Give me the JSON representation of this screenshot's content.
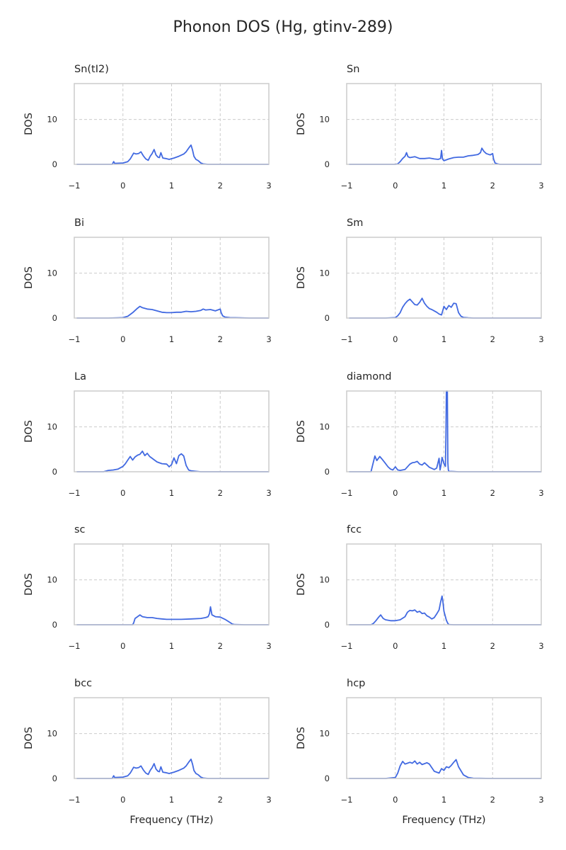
{
  "figure_title": "Phonon DOS (Hg, gtinv-289)",
  "colors": {
    "line": "#4169e1",
    "spine": "#cccccc",
    "grid": "#cccccc",
    "text": "#262626"
  },
  "chart_data": [
    {
      "type": "line",
      "title": "Sn(tI2)",
      "ylabel": "DOS",
      "xlabel": "",
      "xlim": [
        -1,
        3
      ],
      "ylim": [
        0,
        18
      ],
      "xticks": [
        "−1",
        "0",
        "1",
        "2",
        "3"
      ],
      "yticks": [
        "0",
        "10"
      ],
      "grid": true,
      "grid_style": "dashed",
      "x": [
        -0.95,
        -0.22,
        -0.19,
        -0.17,
        0,
        0.1,
        0.15,
        0.22,
        0.27,
        0.32,
        0.37,
        0.42,
        0.47,
        0.52,
        0.56,
        0.6,
        0.64,
        0.68,
        0.72,
        0.75,
        0.78,
        0.82,
        0.88,
        0.95,
        1.05,
        1.15,
        1.25,
        1.3,
        1.35,
        1.4,
        1.43,
        1.46,
        1.5,
        1.55,
        1.6,
        1.65,
        1.75,
        2.0,
        2.5,
        3.0
      ],
      "y": [
        0,
        0,
        0.6,
        0.2,
        0.3,
        0.6,
        1.2,
        2.5,
        2.3,
        2.4,
        2.8,
        1.9,
        1.2,
        0.9,
        1.8,
        2.4,
        3.3,
        2.1,
        1.6,
        1.5,
        2.6,
        1.4,
        1.3,
        1.1,
        1.4,
        1.8,
        2.3,
        2.8,
        3.6,
        4.3,
        3.2,
        1.8,
        1.1,
        0.8,
        0.3,
        0.1,
        0,
        0,
        0,
        0
      ],
      "series": [
        {
          "name": ""
        }
      ]
    },
    {
      "type": "line",
      "title": "Sn",
      "ylabel": "DOS",
      "xlabel": "",
      "xlim": [
        -1,
        3
      ],
      "ylim": [
        0,
        18
      ],
      "xticks": [
        "−1",
        "0",
        "1",
        "2",
        "3"
      ],
      "yticks": [
        "0",
        "10"
      ],
      "grid": true,
      "grid_style": "dashed",
      "x": [
        -0.95,
        -0.2,
        0,
        0.05,
        0.1,
        0.15,
        0.2,
        0.23,
        0.26,
        0.3,
        0.4,
        0.5,
        0.6,
        0.7,
        0.8,
        0.88,
        0.93,
        0.95,
        0.97,
        1.0,
        1.1,
        1.2,
        1.3,
        1.4,
        1.5,
        1.6,
        1.7,
        1.75,
        1.78,
        1.82,
        1.87,
        1.95,
        2.0,
        2.02,
        2.05,
        2.1,
        2.15,
        2.2,
        2.5,
        3.0
      ],
      "y": [
        0,
        0,
        0,
        0.1,
        0.6,
        1.3,
        1.8,
        2.6,
        1.7,
        1.5,
        1.7,
        1.3,
        1.3,
        1.4,
        1.2,
        1.1,
        1.3,
        3.1,
        1.2,
        0.8,
        1.2,
        1.5,
        1.6,
        1.6,
        1.9,
        2.0,
        2.2,
        2.6,
        3.6,
        2.9,
        2.4,
        2.1,
        2.4,
        1.2,
        0.3,
        0.1,
        0,
        0,
        0,
        0
      ],
      "series": [
        {
          "name": ""
        }
      ]
    },
    {
      "type": "line",
      "title": "Bi",
      "ylabel": "DOS",
      "xlabel": "",
      "xlim": [
        -1,
        3
      ],
      "ylim": [
        0,
        18
      ],
      "xticks": [
        "−1",
        "0",
        "1",
        "2",
        "3"
      ],
      "yticks": [
        "0",
        "10"
      ],
      "grid": true,
      "grid_style": "dashed",
      "x": [
        -0.95,
        -0.3,
        -0.1,
        0,
        0.1,
        0.2,
        0.3,
        0.35,
        0.4,
        0.5,
        0.6,
        0.7,
        0.8,
        0.9,
        1.0,
        1.1,
        1.2,
        1.3,
        1.4,
        1.5,
        1.6,
        1.65,
        1.7,
        1.8,
        1.9,
        2.0,
        2.02,
        2.05,
        2.1,
        2.2,
        2.4,
        2.6,
        3.0
      ],
      "y": [
        0,
        0,
        0.05,
        0.1,
        0.4,
        1.2,
        2.2,
        2.6,
        2.3,
        2.0,
        1.9,
        1.6,
        1.3,
        1.2,
        1.2,
        1.3,
        1.3,
        1.5,
        1.4,
        1.5,
        1.7,
        2.0,
        1.8,
        1.9,
        1.6,
        2.0,
        1.2,
        0.5,
        0.2,
        0.1,
        0.05,
        0,
        0
      ],
      "series": [
        {
          "name": ""
        }
      ]
    },
    {
      "type": "line",
      "title": "Sm",
      "ylabel": "DOS",
      "xlabel": "",
      "xlim": [
        -1,
        3
      ],
      "ylim": [
        0,
        18
      ],
      "xticks": [
        "−1",
        "0",
        "1",
        "2",
        "3"
      ],
      "yticks": [
        "0",
        "10"
      ],
      "grid": true,
      "grid_style": "dashed",
      "x": [
        -0.95,
        -0.2,
        0,
        0.05,
        0.1,
        0.15,
        0.2,
        0.25,
        0.3,
        0.35,
        0.4,
        0.45,
        0.5,
        0.55,
        0.6,
        0.65,
        0.7,
        0.75,
        0.8,
        0.85,
        0.9,
        0.95,
        1.0,
        1.05,
        1.1,
        1.15,
        1.2,
        1.25,
        1.3,
        1.35,
        1.4,
        1.5,
        1.6,
        2.0,
        3.0
      ],
      "y": [
        0,
        0,
        0.1,
        0.5,
        1.2,
        2.4,
        3.2,
        3.8,
        4.2,
        3.6,
        3.0,
        2.9,
        3.5,
        4.4,
        3.3,
        2.6,
        2.1,
        1.9,
        1.6,
        1.3,
        0.9,
        0.7,
        2.6,
        1.9,
        2.8,
        2.4,
        3.3,
        3.2,
        1.2,
        0.4,
        0.15,
        0.05,
        0,
        0,
        0
      ],
      "series": [
        {
          "name": ""
        }
      ]
    },
    {
      "type": "line",
      "title": "La",
      "ylabel": "DOS",
      "xlabel": "",
      "xlim": [
        -1,
        3
      ],
      "ylim": [
        0,
        18
      ],
      "xticks": [
        "−1",
        "0",
        "1",
        "2",
        "3"
      ],
      "yticks": [
        "0",
        "10"
      ],
      "grid": true,
      "grid_style": "dashed",
      "x": [
        -0.95,
        -0.4,
        -0.3,
        -0.2,
        -0.1,
        0,
        0.05,
        0.1,
        0.15,
        0.2,
        0.25,
        0.3,
        0.35,
        0.4,
        0.45,
        0.5,
        0.55,
        0.6,
        0.7,
        0.8,
        0.9,
        0.95,
        1.0,
        1.05,
        1.1,
        1.15,
        1.2,
        1.25,
        1.3,
        1.35,
        1.4,
        1.5,
        1.6,
        2.0,
        3.0
      ],
      "y": [
        0,
        0,
        0.3,
        0.4,
        0.6,
        1.2,
        1.8,
        2.6,
        3.4,
        2.6,
        3.3,
        3.7,
        3.9,
        4.6,
        3.6,
        4.1,
        3.4,
        3.0,
        2.2,
        1.8,
        1.7,
        1.1,
        1.6,
        3.1,
        1.8,
        3.6,
        4.0,
        3.5,
        1.4,
        0.4,
        0.2,
        0.1,
        0,
        0,
        0
      ],
      "series": [
        {
          "name": ""
        }
      ]
    },
    {
      "type": "line",
      "title": "diamond",
      "ylabel": "DOS",
      "xlabel": "",
      "xlim": [
        -1,
        3
      ],
      "ylim": [
        0,
        18
      ],
      "xticks": [
        "−1",
        "0",
        "1",
        "2",
        "3"
      ],
      "yticks": [
        "0",
        "10"
      ],
      "grid": true,
      "grid_style": "dashed",
      "x": [
        -0.95,
        -0.5,
        -0.45,
        -0.42,
        -0.38,
        -0.32,
        -0.28,
        -0.22,
        -0.15,
        -0.1,
        -0.05,
        0,
        0.05,
        0.1,
        0.2,
        0.3,
        0.35,
        0.4,
        0.45,
        0.5,
        0.55,
        0.6,
        0.7,
        0.8,
        0.85,
        0.9,
        0.92,
        0.94,
        0.96,
        1.0,
        1.03,
        1.04,
        1.05,
        1.07,
        1.08,
        1.09,
        1.1,
        1.2,
        1.3,
        2.0,
        3.0
      ],
      "y": [
        0,
        0,
        2.2,
        3.5,
        2.5,
        3.4,
        2.9,
        2.1,
        1.1,
        0.6,
        0.4,
        1.1,
        0.4,
        0.3,
        0.5,
        1.7,
        2.0,
        2.1,
        2.3,
        1.7,
        1.5,
        2.0,
        1.0,
        0.5,
        0.8,
        3.0,
        0.4,
        1.5,
        3.2,
        1.8,
        1.2,
        8.0,
        18.5,
        18.5,
        2.0,
        0.4,
        0.1,
        0.05,
        0,
        0,
        0
      ],
      "series": [
        {
          "name": ""
        }
      ]
    },
    {
      "type": "line",
      "title": "sc",
      "ylabel": "DOS",
      "xlabel": "",
      "xlim": [
        -1,
        3
      ],
      "ylim": [
        0,
        18
      ],
      "xticks": [
        "−1",
        "0",
        "1",
        "2",
        "3"
      ],
      "yticks": [
        "0",
        "10"
      ],
      "grid": true,
      "grid_style": "dashed",
      "x": [
        -0.95,
        0.2,
        0.22,
        0.25,
        0.3,
        0.35,
        0.4,
        0.5,
        0.6,
        0.7,
        0.8,
        0.9,
        1.0,
        1.2,
        1.4,
        1.6,
        1.7,
        1.75,
        1.78,
        1.8,
        1.83,
        1.9,
        2.0,
        2.1,
        2.2,
        2.25,
        2.3,
        2.5,
        3.0
      ],
      "y": [
        0,
        0,
        0.4,
        1.4,
        1.8,
        2.2,
        1.8,
        1.6,
        1.6,
        1.4,
        1.3,
        1.2,
        1.2,
        1.2,
        1.3,
        1.4,
        1.6,
        1.8,
        2.5,
        4.0,
        2.2,
        1.8,
        1.7,
        1.2,
        0.5,
        0.15,
        0.05,
        0,
        0
      ],
      "series": [
        {
          "name": ""
        }
      ]
    },
    {
      "type": "line",
      "title": "fcc",
      "ylabel": "DOS",
      "xlabel": "",
      "xlim": [
        -1,
        3
      ],
      "ylim": [
        0,
        18
      ],
      "xticks": [
        "−1",
        "0",
        "1",
        "2",
        "3"
      ],
      "yticks": [
        "0",
        "10"
      ],
      "grid": true,
      "grid_style": "dashed",
      "x": [
        -0.95,
        -0.5,
        -0.45,
        -0.4,
        -0.35,
        -0.3,
        -0.25,
        -0.2,
        -0.1,
        0,
        0.1,
        0.2,
        0.25,
        0.3,
        0.35,
        0.4,
        0.45,
        0.5,
        0.55,
        0.6,
        0.65,
        0.7,
        0.75,
        0.8,
        0.85,
        0.9,
        0.93,
        0.96,
        0.98,
        1.0,
        1.02,
        1.05,
        1.08,
        1.1,
        1.2,
        2.0,
        3.0
      ],
      "y": [
        0,
        0,
        0.3,
        0.9,
        1.6,
        2.2,
        1.4,
        1.1,
        0.9,
        0.9,
        1.1,
        1.8,
        2.8,
        3.2,
        3.1,
        3.3,
        2.8,
        3.0,
        2.5,
        2.6,
        2.0,
        1.7,
        1.3,
        1.6,
        2.4,
        3.3,
        5.0,
        6.4,
        5.0,
        3.0,
        2.2,
        1.0,
        0.3,
        0.05,
        0,
        0,
        0
      ],
      "series": [
        {
          "name": ""
        }
      ]
    },
    {
      "type": "line",
      "title": "bcc",
      "ylabel": "DOS",
      "xlabel": "",
      "xlim": [
        -1,
        3
      ],
      "ylim": [
        0,
        18
      ],
      "xticks": [
        "−1",
        "0",
        "1",
        "2",
        "3"
      ],
      "yticks": [
        "0",
        "10"
      ],
      "grid": true,
      "grid_style": "dashed",
      "x": [
        -0.95,
        -0.22,
        -0.19,
        -0.17,
        0,
        0.1,
        0.15,
        0.22,
        0.27,
        0.32,
        0.37,
        0.42,
        0.47,
        0.52,
        0.56,
        0.6,
        0.64,
        0.68,
        0.72,
        0.75,
        0.78,
        0.82,
        0.88,
        0.95,
        1.05,
        1.15,
        1.25,
        1.3,
        1.35,
        1.4,
        1.43,
        1.46,
        1.5,
        1.55,
        1.6,
        1.65,
        1.75,
        2.0,
        2.5,
        3.0
      ],
      "y": [
        0,
        0,
        0.6,
        0.2,
        0.3,
        0.6,
        1.2,
        2.5,
        2.3,
        2.4,
        2.8,
        1.9,
        1.2,
        0.9,
        1.8,
        2.4,
        3.3,
        2.1,
        1.6,
        1.5,
        2.6,
        1.4,
        1.3,
        1.1,
        1.4,
        1.8,
        2.3,
        2.8,
        3.6,
        4.3,
        3.2,
        1.8,
        1.1,
        0.8,
        0.3,
        0.1,
        0,
        0,
        0,
        0
      ],
      "series": [
        {
          "name": ""
        }
      ]
    },
    {
      "type": "line",
      "title": "hcp",
      "ylabel": "DOS",
      "xlabel": "",
      "xlim": [
        -1,
        3
      ],
      "ylim": [
        0,
        18
      ],
      "xticks": [
        "−1",
        "0",
        "1",
        "2",
        "3"
      ],
      "yticks": [
        "0",
        "10"
      ],
      "grid": true,
      "grid_style": "dashed",
      "x": [
        -0.95,
        -0.2,
        0,
        0.05,
        0.1,
        0.15,
        0.2,
        0.25,
        0.3,
        0.35,
        0.4,
        0.45,
        0.5,
        0.55,
        0.6,
        0.65,
        0.7,
        0.75,
        0.8,
        0.85,
        0.9,
        0.95,
        1.0,
        1.05,
        1.1,
        1.15,
        1.2,
        1.25,
        1.3,
        1.4,
        1.5,
        1.6,
        2.0,
        3.0
      ],
      "y": [
        0,
        0,
        0.2,
        1.2,
        2.8,
        3.8,
        3.2,
        3.4,
        3.6,
        3.4,
        3.9,
        3.2,
        3.6,
        3.1,
        3.3,
        3.5,
        3.2,
        2.4,
        1.6,
        1.4,
        1.2,
        2.2,
        1.8,
        2.6,
        2.4,
        2.9,
        3.6,
        4.2,
        2.6,
        0.8,
        0.2,
        0.05,
        0,
        0
      ],
      "series": [
        {
          "name": ""
        }
      ]
    }
  ],
  "shared_xlabel": "Frequency (THz)"
}
